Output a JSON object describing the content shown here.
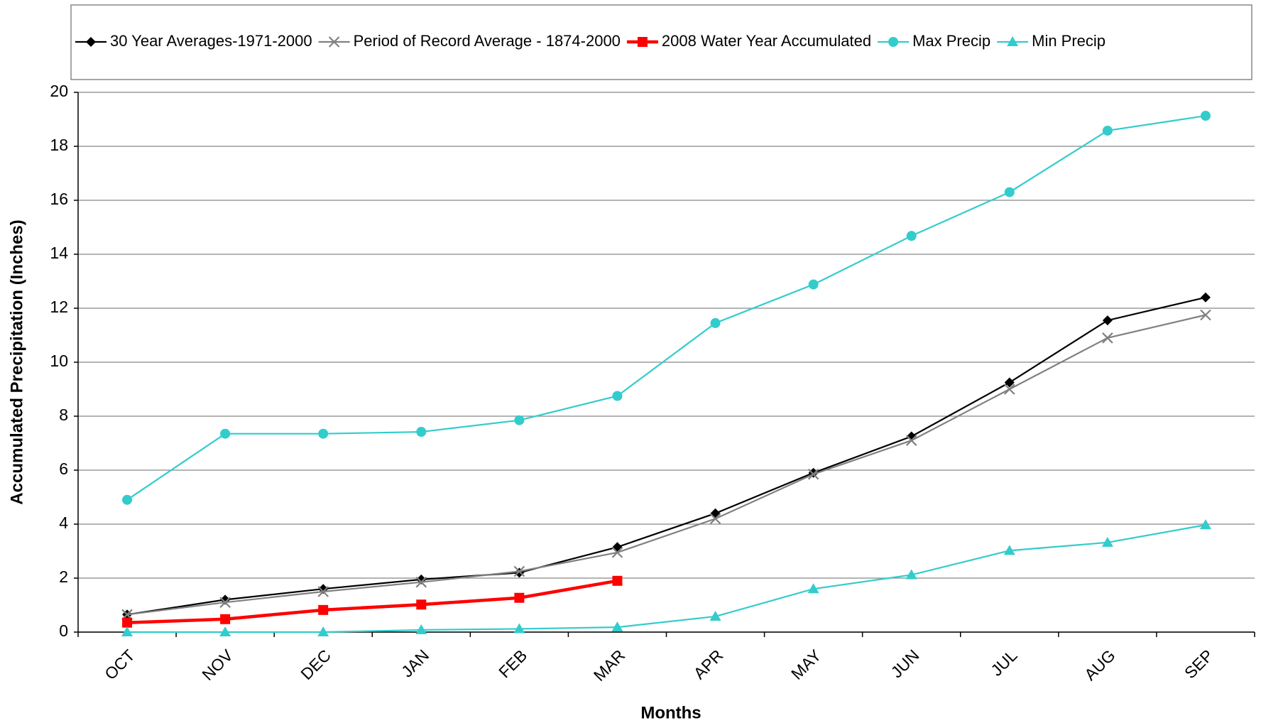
{
  "chart_data": {
    "type": "line",
    "x_label": "Months",
    "y_label": "Accumulated Precipitation (Inches)",
    "categories": [
      "OCT",
      "NOV",
      "DEC",
      "JAN",
      "FEB",
      "MAR",
      "APR",
      "MAY",
      "JUN",
      "JUL",
      "AUG",
      "SEP"
    ],
    "series": [
      {
        "name": "30 Year Averages-1971-2000",
        "color": "#000000",
        "marker": "diamond",
        "values": [
          0.65,
          1.2,
          1.6,
          1.95,
          2.2,
          3.15,
          4.4,
          5.9,
          7.25,
          9.25,
          11.55,
          12.4
        ]
      },
      {
        "name": "Period of Record Average - 1874-2000",
        "color": "#808080",
        "marker": "x",
        "values": [
          0.65,
          1.1,
          1.5,
          1.85,
          2.25,
          2.95,
          4.2,
          5.85,
          7.1,
          9.0,
          10.9,
          11.75
        ]
      },
      {
        "name": "2008 Water Year Accumulated",
        "color": "#ff0000",
        "marker": "square",
        "values": [
          0.35,
          0.48,
          0.82,
          1.02,
          1.27,
          1.9,
          null,
          null,
          null,
          null,
          null,
          null
        ]
      },
      {
        "name": "Max Precip",
        "color": "#33cccc",
        "marker": "circle",
        "values": [
          4.9,
          7.35,
          7.35,
          7.42,
          7.85,
          8.75,
          11.45,
          12.88,
          14.68,
          16.3,
          18.58,
          19.13
        ]
      },
      {
        "name": "Min Precip",
        "color": "#33cccc",
        "marker": "triangle",
        "values": [
          0,
          0,
          0,
          0.08,
          0.12,
          0.18,
          0.58,
          1.6,
          2.12,
          3.02,
          3.32,
          3.97
        ]
      }
    ],
    "ylim": [
      0,
      20
    ],
    "yticks": [
      0,
      2,
      4,
      6,
      8,
      10,
      12,
      14,
      16,
      18,
      20
    ],
    "grid": true,
    "legend": "top"
  }
}
